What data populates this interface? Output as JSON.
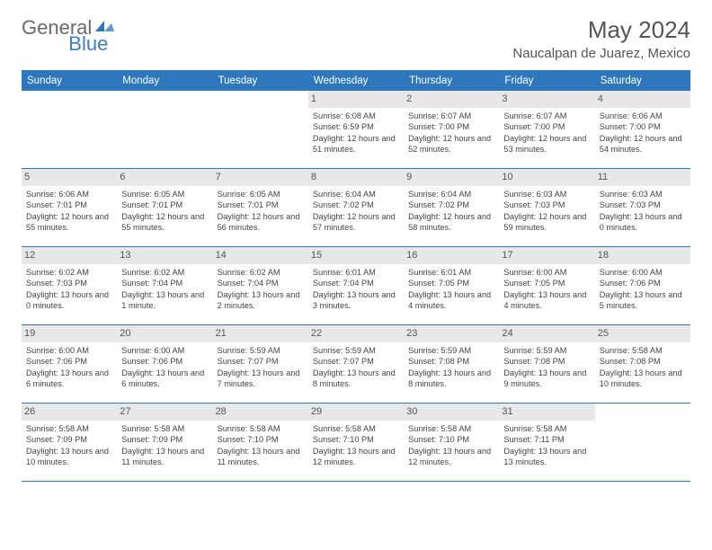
{
  "logo": {
    "text1": "General",
    "text2": "Blue"
  },
  "title": "May 2024",
  "location": "Naucalpan de Juarez, Mexico",
  "colors": {
    "header_bg": "#2e77bc",
    "header_text": "#ffffff",
    "daynum_bg": "#e8e8e8",
    "border": "#2e77bc",
    "logo_gray": "#6a6a6a",
    "logo_blue": "#3a7fbf"
  },
  "day_headers": [
    "Sunday",
    "Monday",
    "Tuesday",
    "Wednesday",
    "Thursday",
    "Friday",
    "Saturday"
  ],
  "weeks": [
    [
      {
        "n": "",
        "sr": "",
        "ss": "",
        "dl": ""
      },
      {
        "n": "",
        "sr": "",
        "ss": "",
        "dl": ""
      },
      {
        "n": "",
        "sr": "",
        "ss": "",
        "dl": ""
      },
      {
        "n": "1",
        "sr": "Sunrise: 6:08 AM",
        "ss": "Sunset: 6:59 PM",
        "dl": "Daylight: 12 hours and 51 minutes."
      },
      {
        "n": "2",
        "sr": "Sunrise: 6:07 AM",
        "ss": "Sunset: 7:00 PM",
        "dl": "Daylight: 12 hours and 52 minutes."
      },
      {
        "n": "3",
        "sr": "Sunrise: 6:07 AM",
        "ss": "Sunset: 7:00 PM",
        "dl": "Daylight: 12 hours and 53 minutes."
      },
      {
        "n": "4",
        "sr": "Sunrise: 6:06 AM",
        "ss": "Sunset: 7:00 PM",
        "dl": "Daylight: 12 hours and 54 minutes."
      }
    ],
    [
      {
        "n": "5",
        "sr": "Sunrise: 6:06 AM",
        "ss": "Sunset: 7:01 PM",
        "dl": "Daylight: 12 hours and 55 minutes."
      },
      {
        "n": "6",
        "sr": "Sunrise: 6:05 AM",
        "ss": "Sunset: 7:01 PM",
        "dl": "Daylight: 12 hours and 55 minutes."
      },
      {
        "n": "7",
        "sr": "Sunrise: 6:05 AM",
        "ss": "Sunset: 7:01 PM",
        "dl": "Daylight: 12 hours and 56 minutes."
      },
      {
        "n": "8",
        "sr": "Sunrise: 6:04 AM",
        "ss": "Sunset: 7:02 PM",
        "dl": "Daylight: 12 hours and 57 minutes."
      },
      {
        "n": "9",
        "sr": "Sunrise: 6:04 AM",
        "ss": "Sunset: 7:02 PM",
        "dl": "Daylight: 12 hours and 58 minutes."
      },
      {
        "n": "10",
        "sr": "Sunrise: 6:03 AM",
        "ss": "Sunset: 7:03 PM",
        "dl": "Daylight: 12 hours and 59 minutes."
      },
      {
        "n": "11",
        "sr": "Sunrise: 6:03 AM",
        "ss": "Sunset: 7:03 PM",
        "dl": "Daylight: 13 hours and 0 minutes."
      }
    ],
    [
      {
        "n": "12",
        "sr": "Sunrise: 6:02 AM",
        "ss": "Sunset: 7:03 PM",
        "dl": "Daylight: 13 hours and 0 minutes."
      },
      {
        "n": "13",
        "sr": "Sunrise: 6:02 AM",
        "ss": "Sunset: 7:04 PM",
        "dl": "Daylight: 13 hours and 1 minute."
      },
      {
        "n": "14",
        "sr": "Sunrise: 6:02 AM",
        "ss": "Sunset: 7:04 PM",
        "dl": "Daylight: 13 hours and 2 minutes."
      },
      {
        "n": "15",
        "sr": "Sunrise: 6:01 AM",
        "ss": "Sunset: 7:04 PM",
        "dl": "Daylight: 13 hours and 3 minutes."
      },
      {
        "n": "16",
        "sr": "Sunrise: 6:01 AM",
        "ss": "Sunset: 7:05 PM",
        "dl": "Daylight: 13 hours and 4 minutes."
      },
      {
        "n": "17",
        "sr": "Sunrise: 6:00 AM",
        "ss": "Sunset: 7:05 PM",
        "dl": "Daylight: 13 hours and 4 minutes."
      },
      {
        "n": "18",
        "sr": "Sunrise: 6:00 AM",
        "ss": "Sunset: 7:06 PM",
        "dl": "Daylight: 13 hours and 5 minutes."
      }
    ],
    [
      {
        "n": "19",
        "sr": "Sunrise: 6:00 AM",
        "ss": "Sunset: 7:06 PM",
        "dl": "Daylight: 13 hours and 6 minutes."
      },
      {
        "n": "20",
        "sr": "Sunrise: 6:00 AM",
        "ss": "Sunset: 7:06 PM",
        "dl": "Daylight: 13 hours and 6 minutes."
      },
      {
        "n": "21",
        "sr": "Sunrise: 5:59 AM",
        "ss": "Sunset: 7:07 PM",
        "dl": "Daylight: 13 hours and 7 minutes."
      },
      {
        "n": "22",
        "sr": "Sunrise: 5:59 AM",
        "ss": "Sunset: 7:07 PM",
        "dl": "Daylight: 13 hours and 8 minutes."
      },
      {
        "n": "23",
        "sr": "Sunrise: 5:59 AM",
        "ss": "Sunset: 7:08 PM",
        "dl": "Daylight: 13 hours and 8 minutes."
      },
      {
        "n": "24",
        "sr": "Sunrise: 5:59 AM",
        "ss": "Sunset: 7:08 PM",
        "dl": "Daylight: 13 hours and 9 minutes."
      },
      {
        "n": "25",
        "sr": "Sunrise: 5:58 AM",
        "ss": "Sunset: 7:08 PM",
        "dl": "Daylight: 13 hours and 10 minutes."
      }
    ],
    [
      {
        "n": "26",
        "sr": "Sunrise: 5:58 AM",
        "ss": "Sunset: 7:09 PM",
        "dl": "Daylight: 13 hours and 10 minutes."
      },
      {
        "n": "27",
        "sr": "Sunrise: 5:58 AM",
        "ss": "Sunset: 7:09 PM",
        "dl": "Daylight: 13 hours and 11 minutes."
      },
      {
        "n": "28",
        "sr": "Sunrise: 5:58 AM",
        "ss": "Sunset: 7:10 PM",
        "dl": "Daylight: 13 hours and 11 minutes."
      },
      {
        "n": "29",
        "sr": "Sunrise: 5:58 AM",
        "ss": "Sunset: 7:10 PM",
        "dl": "Daylight: 13 hours and 12 minutes."
      },
      {
        "n": "30",
        "sr": "Sunrise: 5:58 AM",
        "ss": "Sunset: 7:10 PM",
        "dl": "Daylight: 13 hours and 12 minutes."
      },
      {
        "n": "31",
        "sr": "Sunrise: 5:58 AM",
        "ss": "Sunset: 7:11 PM",
        "dl": "Daylight: 13 hours and 13 minutes."
      },
      {
        "n": "",
        "sr": "",
        "ss": "",
        "dl": ""
      }
    ]
  ]
}
